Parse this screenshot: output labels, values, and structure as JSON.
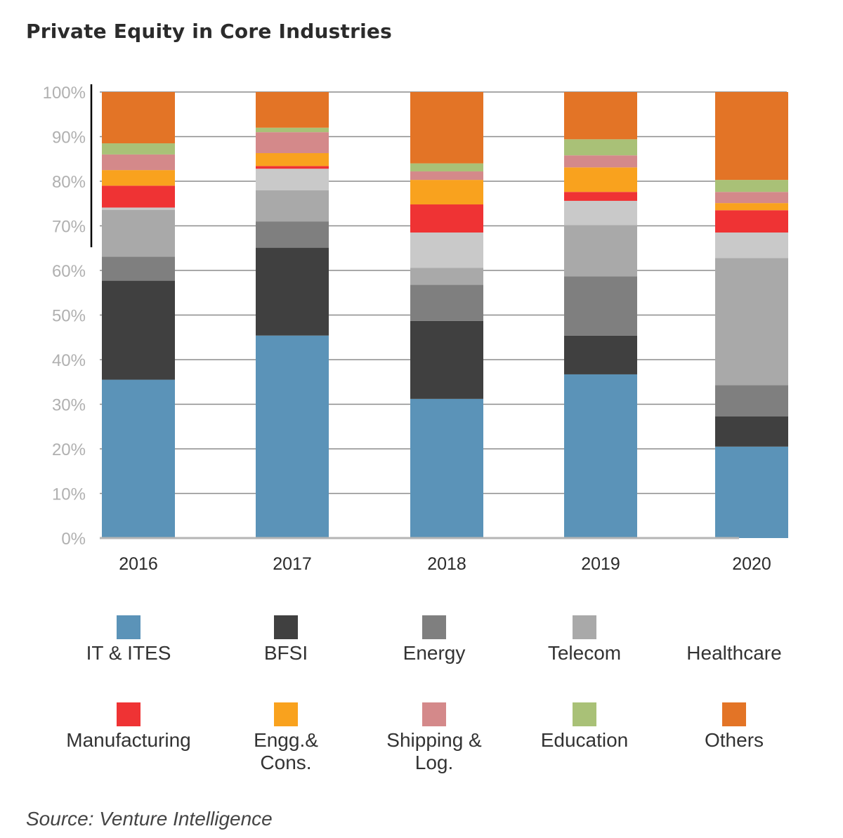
{
  "title": "Private Equity in Core Industries",
  "source": "Source: Venture  Intelligence",
  "chart_data": {
    "type": "bar",
    "stacked": true,
    "percent_stacked": true,
    "title": "Private Equity in Core Industries",
    "xlabel": "",
    "ylabel": "",
    "ylim": [
      0,
      100
    ],
    "yticks": [
      "0%",
      "10%",
      "20%",
      "30%",
      "40%",
      "50%",
      "60%",
      "70%",
      "80%",
      "90%",
      "100%"
    ],
    "grid": true,
    "legend_position": "bottom",
    "categories": [
      "2016",
      "2017",
      "2018",
      "2019",
      "2020"
    ],
    "series": [
      {
        "name": "IT & ITES",
        "color": "#5b93b8",
        "values": [
          35.5,
          45.4,
          31.2,
          36.7,
          20.5
        ]
      },
      {
        "name": "BFSI",
        "color": "#404040",
        "values": [
          22.2,
          19.7,
          17.5,
          8.7,
          6.8
        ]
      },
      {
        "name": "Energy",
        "color": "#7f7f7f",
        "values": [
          5.4,
          5.9,
          8.1,
          13.3,
          7.0
        ]
      },
      {
        "name": "Telecom",
        "color": "#a9a9a9",
        "values": [
          10.5,
          7.0,
          3.8,
          11.5,
          28.5
        ]
      },
      {
        "name": "Healthcare",
        "color": "#c9c9c9",
        "values": [
          0.5,
          4.8,
          7.9,
          5.4,
          5.7
        ]
      },
      {
        "name": "Manufacturing",
        "color": "#ef3334",
        "values": [
          4.9,
          0.6,
          6.3,
          2.0,
          5.0
        ]
      },
      {
        "name": "Engg.& Cons.",
        "color": "#f9a21e",
        "values": [
          3.5,
          2.9,
          5.5,
          5.5,
          1.6
        ]
      },
      {
        "name": "Shipping & Log.",
        "color": "#d4898a",
        "values": [
          3.5,
          4.7,
          1.9,
          2.7,
          2.5
        ]
      },
      {
        "name": "Education",
        "color": "#a9c177",
        "values": [
          2.5,
          1.0,
          1.8,
          3.6,
          2.7
        ]
      },
      {
        "name": "Others",
        "color": "#e37426",
        "values": [
          11.5,
          8.0,
          16.0,
          10.6,
          19.7
        ]
      }
    ]
  },
  "legend": [
    {
      "lines": [
        "IT & ITES"
      ],
      "color": "#5b93b8",
      "swatch": true
    },
    {
      "lines": [
        "BFSI"
      ],
      "color": "#404040",
      "swatch": true
    },
    {
      "lines": [
        "Energy"
      ],
      "color": "#7f7f7f",
      "swatch": true
    },
    {
      "lines": [
        "Telecom"
      ],
      "color": "#a9a9a9",
      "swatch": true
    },
    {
      "lines": [
        "Healthcare"
      ],
      "color": "#ffffff",
      "swatch": false
    },
    {
      "lines": [
        "Manufacturing"
      ],
      "color": "#ef3334",
      "swatch": true
    },
    {
      "lines": [
        "Engg.&",
        "Cons."
      ],
      "color": "#f9a21e",
      "swatch": true
    },
    {
      "lines": [
        "Shipping &",
        "Log."
      ],
      "color": "#d4898a",
      "swatch": true
    },
    {
      "lines": [
        "Education"
      ],
      "color": "#a9c177",
      "swatch": true
    },
    {
      "lines": [
        "Others"
      ],
      "color": "#e37426",
      "swatch": true
    }
  ]
}
